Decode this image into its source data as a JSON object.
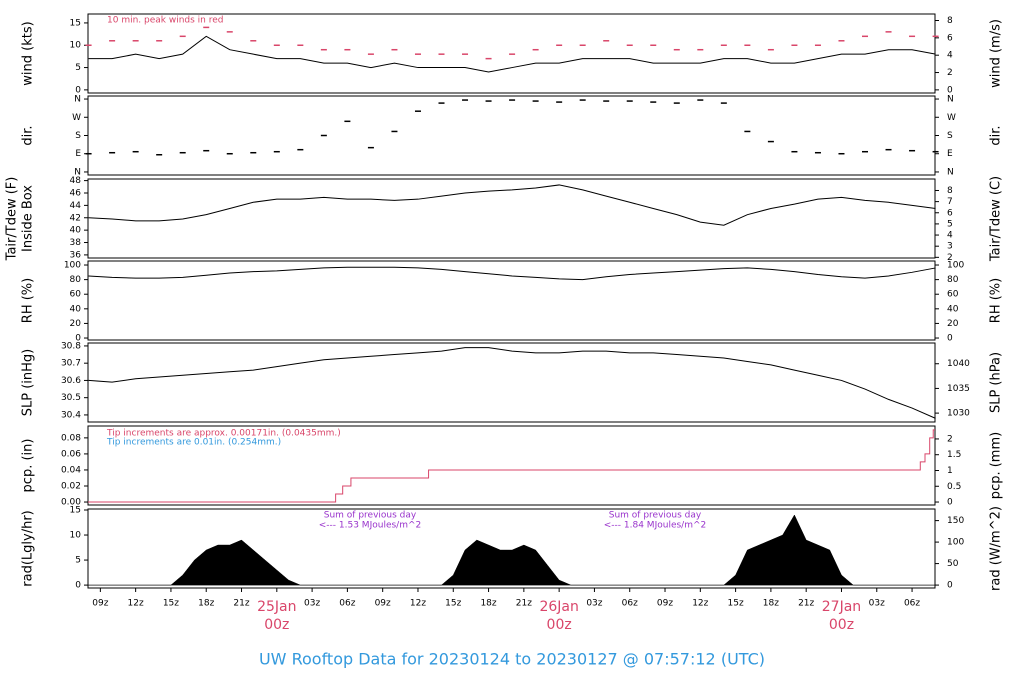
{
  "title": "UW Rooftop Data for 20230124  to  20230127 @ 07:57:12  (UTC)",
  "time_axis": {
    "xlim": [
      7.95,
      79.95
    ],
    "xticks": [
      {
        "value": 9,
        "label": "09z"
      },
      {
        "value": 12,
        "label": "12z"
      },
      {
        "value": 15,
        "label": "15z"
      },
      {
        "value": 18,
        "label": "18z"
      },
      {
        "value": 21,
        "label": "21z"
      },
      {
        "value": 24,
        "label": "25Jan",
        "label2": "00z"
      },
      {
        "value": 27,
        "label": "03z"
      },
      {
        "value": 30,
        "label": "06z"
      },
      {
        "value": 33,
        "label": "09z"
      },
      {
        "value": 36,
        "label": "12z"
      },
      {
        "value": 39,
        "label": "15z"
      },
      {
        "value": 42,
        "label": "18z"
      },
      {
        "value": 45,
        "label": "21z"
      },
      {
        "value": 48,
        "label": "26Jan",
        "label2": "00z"
      },
      {
        "value": 51,
        "label": "03z"
      },
      {
        "value": 54,
        "label": "06z"
      },
      {
        "value": 57,
        "label": "09z"
      },
      {
        "value": 60,
        "label": "12z"
      },
      {
        "value": 63,
        "label": "15z"
      },
      {
        "value": 66,
        "label": "18z"
      },
      {
        "value": 69,
        "label": "21z"
      },
      {
        "value": 72,
        "label": "27Jan",
        "label2": "00z"
      },
      {
        "value": 75,
        "label": "03z"
      },
      {
        "value": 78,
        "label": "06z"
      }
    ]
  },
  "chart_data": [
    {
      "type": "line",
      "ylabel": "wind (kts)",
      "y2label": "wind (m/s)",
      "ylim": [
        -0.7,
        17
      ],
      "yticks": [
        0,
        5,
        10,
        15
      ],
      "y2lim": [
        -0.36,
        8.75
      ],
      "y2ticks": [
        0,
        2,
        4,
        6,
        8
      ],
      "annotations": [
        {
          "text": "10 min. peak winds in red",
          "color": "#d9466a"
        }
      ],
      "x": [
        8,
        10,
        12,
        14,
        16,
        18,
        20,
        22,
        24,
        26,
        28,
        30,
        32,
        34,
        36,
        38,
        40,
        42,
        44,
        46,
        48,
        50,
        52,
        54,
        56,
        58,
        60,
        62,
        64,
        66,
        68,
        70,
        72,
        74,
        76,
        78,
        80
      ],
      "series": [
        {
          "name": "wind",
          "color": "#000000",
          "style": "line",
          "values": [
            7,
            7,
            8,
            7,
            8,
            12,
            9,
            8,
            7,
            7,
            6,
            6,
            5,
            6,
            5,
            5,
            5,
            4,
            5,
            6,
            6,
            7,
            7,
            7,
            6,
            6,
            6,
            7,
            7,
            6,
            6,
            7,
            8,
            8,
            9,
            9,
            8
          ]
        },
        {
          "name": "peak",
          "color": "#d9466a",
          "style": "dash",
          "values": [
            10,
            11,
            11,
            11,
            12,
            14,
            13,
            11,
            10,
            10,
            9,
            9,
            8,
            9,
            8,
            8,
            8,
            7,
            8,
            9,
            10,
            10,
            11,
            10,
            10,
            9,
            9,
            10,
            10,
            9,
            10,
            10,
            11,
            12,
            13,
            12,
            12
          ]
        }
      ]
    },
    {
      "type": "scatter",
      "ylabel": "dir.",
      "y2label": "dir.",
      "ylim": [
        -15,
        375
      ],
      "yticks": [
        {
          "value": 0,
          "label": "N"
        },
        {
          "value": 90,
          "label": "E"
        },
        {
          "value": 180,
          "label": "S"
        },
        {
          "value": 270,
          "label": "W"
        },
        {
          "value": 360,
          "label": "N"
        }
      ],
      "y2lim": [
        -15,
        375
      ],
      "y2ticks": [
        {
          "value": 0,
          "label": "N"
        },
        {
          "value": 90,
          "label": "E"
        },
        {
          "value": 180,
          "label": "S"
        },
        {
          "value": 270,
          "label": "W"
        },
        {
          "value": 360,
          "label": "N"
        }
      ],
      "x": [
        8,
        10,
        12,
        14,
        16,
        18,
        20,
        22,
        24,
        26,
        28,
        30,
        32,
        34,
        36,
        38,
        40,
        42,
        44,
        46,
        48,
        50,
        52,
        54,
        56,
        58,
        60,
        62,
        64,
        66,
        68,
        70,
        72,
        74,
        76,
        78,
        80
      ],
      "series": [
        {
          "name": "dir",
          "color": "#000000",
          "style": "dash",
          "values": [
            90,
            95,
            100,
            85,
            95,
            105,
            90,
            95,
            100,
            110,
            180,
            250,
            120,
            200,
            300,
            340,
            355,
            350,
            355,
            350,
            345,
            355,
            350,
            350,
            345,
            340,
            355,
            340,
            200,
            150,
            100,
            95,
            90,
            100,
            110,
            105,
            100
          ]
        }
      ]
    },
    {
      "type": "line",
      "ylabel": "Tair/Tdew (F)",
      "sublabel": "Inside Box",
      "y2label": "Tair/Tdew (C)",
      "ylim": [
        35.5,
        48.26
      ],
      "yticks": [
        36,
        38,
        40,
        42,
        44,
        46,
        48
      ],
      "y2lim": [
        1.94,
        9.03
      ],
      "y2ticks": [
        2,
        3,
        4,
        5,
        6,
        7,
        8
      ],
      "x": [
        8,
        10,
        12,
        14,
        16,
        18,
        20,
        22,
        24,
        26,
        28,
        30,
        32,
        34,
        36,
        38,
        40,
        42,
        44,
        46,
        48,
        50,
        52,
        54,
        56,
        58,
        60,
        62,
        64,
        66,
        68,
        70,
        72,
        74,
        76,
        78,
        80
      ],
      "series": [
        {
          "name": "Tair",
          "color": "#000000",
          "style": "line",
          "values": [
            42,
            41.8,
            41.5,
            41.5,
            41.8,
            42.5,
            43.5,
            44.5,
            45,
            45,
            45.3,
            45,
            45,
            44.8,
            45,
            45.5,
            46,
            46.3,
            46.5,
            46.8,
            47.3,
            46.5,
            45.5,
            44.5,
            43.5,
            42.5,
            41.3,
            40.8,
            42.5,
            43.5,
            44.2,
            45,
            45.3,
            44.8,
            44.5,
            44,
            43.5
          ]
        }
      ]
    },
    {
      "type": "line",
      "ylabel": "RH (%)",
      "y2label": "RH (%)",
      "ylim": [
        -2.7,
        105.5
      ],
      "yticks": [
        0,
        20,
        40,
        60,
        80,
        100
      ],
      "y2lim": [
        -2.7,
        105.5
      ],
      "y2ticks": [
        0,
        20,
        40,
        60,
        80,
        100
      ],
      "x": [
        8,
        10,
        12,
        14,
        16,
        18,
        20,
        22,
        24,
        26,
        28,
        30,
        32,
        34,
        36,
        38,
        40,
        42,
        44,
        46,
        48,
        50,
        52,
        54,
        56,
        58,
        60,
        62,
        64,
        66,
        68,
        70,
        72,
        74,
        76,
        78,
        80
      ],
      "series": [
        {
          "name": "RH",
          "color": "#000000",
          "style": "line",
          "values": [
            85,
            83,
            82,
            82,
            83,
            86,
            89,
            91,
            92,
            94,
            96,
            97,
            97,
            97,
            96,
            94,
            91,
            88,
            85,
            83,
            81,
            80,
            84,
            87,
            89,
            91,
            93,
            95,
            96,
            94,
            91,
            87,
            84,
            82,
            85,
            90,
            96
          ]
        }
      ]
    },
    {
      "type": "line",
      "ylabel": "SLP (inHg)",
      "y2label": "SLP (hPa)",
      "ylim": [
        30.359,
        30.817
      ],
      "yticks": [
        {
          "value": 30.4,
          "label": "30.4"
        },
        {
          "value": 30.5,
          "label": "30.5"
        },
        {
          "value": 30.6,
          "label": "30.6"
        },
        {
          "value": 30.7,
          "label": "30.7"
        },
        {
          "value": 30.8,
          "label": "30.8"
        }
      ],
      "y2lim": [
        1028.2,
        1044.2
      ],
      "y2ticks": [
        1030,
        1035,
        1040
      ],
      "x": [
        8,
        10,
        12,
        14,
        16,
        18,
        20,
        22,
        24,
        26,
        28,
        30,
        32,
        34,
        36,
        38,
        40,
        42,
        44,
        46,
        48,
        50,
        52,
        54,
        56,
        58,
        60,
        62,
        64,
        66,
        68,
        70,
        72,
        74,
        76,
        78,
        80
      ],
      "series": [
        {
          "name": "SLP",
          "color": "#000000",
          "style": "line",
          "values": [
            30.6,
            30.59,
            30.61,
            30.62,
            30.63,
            30.64,
            30.65,
            30.66,
            30.68,
            30.7,
            30.72,
            30.73,
            30.74,
            30.75,
            30.76,
            30.77,
            30.79,
            30.79,
            30.77,
            30.76,
            30.76,
            30.77,
            30.77,
            30.76,
            30.76,
            30.75,
            30.74,
            30.73,
            30.71,
            30.69,
            30.66,
            30.63,
            30.6,
            30.55,
            30.49,
            30.44,
            30.38
          ]
        }
      ]
    },
    {
      "type": "step",
      "ylabel": "pcp. (in)",
      "y2label": "pcp. (mm)",
      "ylim": [
        -0.0037,
        0.0948
      ],
      "yticks": [
        {
          "value": 0,
          "label": "0.00"
        },
        {
          "value": 0.02,
          "label": "0.02"
        },
        {
          "value": 0.04,
          "label": "0.04"
        },
        {
          "value": 0.06,
          "label": "0.06"
        },
        {
          "value": 0.08,
          "label": "0.08"
        }
      ],
      "y2lim": [
        -0.094,
        2.41
      ],
      "y2ticks": [
        0,
        0.5,
        1,
        1.5,
        2
      ],
      "annotations": [
        {
          "text": "Tip increments are approx. 0.00171in. (0.0435mm.)",
          "color": "#d9466a"
        },
        {
          "text": "Tip increments are 0.01in. (0.254mm.)",
          "color": "#3399dd"
        }
      ],
      "x": [
        7.95,
        29.0,
        29.6,
        30.3,
        36.9,
        78.7,
        79.1,
        79.5,
        79.8,
        79.95
      ],
      "series": [
        {
          "name": "pcp",
          "color": "#d9466a",
          "style": "step",
          "values": [
            0,
            0.01,
            0.02,
            0.03,
            0.04,
            0.05,
            0.06,
            0.08,
            0.09,
            0.09
          ]
        }
      ]
    },
    {
      "type": "area",
      "ylabel": "rad(Lgly/hr)",
      "y2label": "rad (W/m^2)",
      "ylim": [
        -0.58,
        15.2
      ],
      "yticks": [
        0,
        5,
        10,
        15
      ],
      "y2lim": [
        -6.8,
        177
      ],
      "y2ticks": [
        0,
        50,
        100,
        150
      ],
      "annotations": [
        {
          "text": "Sum of previous day",
          "color": "#9933cc"
        },
        {
          "text": "<--- 1.53 MJoules/m^2",
          "color": "#9933cc"
        },
        {
          "text": "Sum of previous day",
          "color": "#9933cc"
        },
        {
          "text": "<--- 1.84 MJoules/m^2",
          "color": "#9933cc"
        }
      ],
      "x": [
        7.95,
        15,
        16,
        17,
        18,
        19,
        20,
        21,
        22,
        23,
        24,
        25,
        26,
        38,
        39,
        40,
        41,
        42,
        43,
        44,
        45,
        46,
        47,
        48,
        49,
        62,
        63,
        64,
        65,
        66,
        67,
        68,
        69,
        70,
        71,
        72,
        73,
        79.95
      ],
      "series": [
        {
          "name": "rad",
          "color": "#000000",
          "style": "area",
          "values": [
            0,
            0,
            2,
            5,
            7,
            8,
            8,
            9,
            7,
            5,
            3,
            1,
            0,
            0,
            2,
            7,
            9,
            8,
            7,
            7,
            8,
            7,
            4,
            1,
            0,
            0,
            2,
            7,
            8,
            9,
            10,
            14,
            9,
            8,
            7,
            2,
            0,
            0
          ]
        }
      ]
    }
  ]
}
